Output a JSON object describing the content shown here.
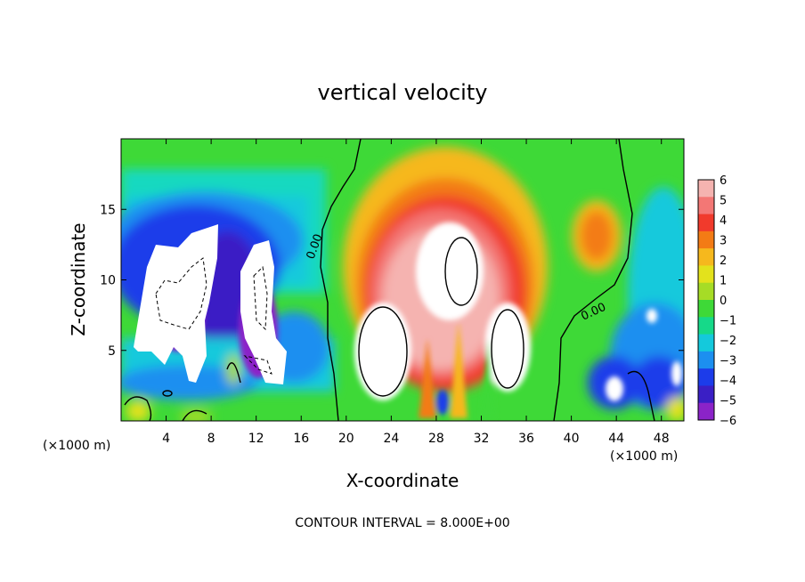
{
  "chart_data": {
    "type": "heatmap",
    "title": "vertical velocity",
    "xlabel": "X-coordinate",
    "ylabel": "Z-coordinate",
    "x_unit_left": "(×1000 m)",
    "x_unit_right": "(×1000 m)",
    "footer": "CONTOUR INTERVAL = 8.000E+00",
    "xlim": [
      0,
      50
    ],
    "ylim": [
      0,
      20
    ],
    "x_ticks": [
      4,
      8,
      12,
      16,
      20,
      24,
      28,
      32,
      36,
      40,
      44,
      48
    ],
    "y_ticks": [
      5,
      10,
      15
    ],
    "colorbar": {
      "min": -6,
      "max": 6,
      "tick_labels": [
        "6",
        "5",
        "4",
        "3",
        "2",
        "1",
        "0",
        "−1",
        "−2",
        "−3",
        "−4",
        "−5",
        "−6"
      ],
      "colors": [
        "#f5b3b0",
        "#f37775",
        "#f13a2c",
        "#f37b15",
        "#f6b81d",
        "#e3e21c",
        "#a6dc26",
        "#3ed937",
        "#16d989",
        "#14c9dc",
        "#1c8ff0",
        "#1c3cea",
        "#3a1fc5",
        "#8b23c8"
      ]
    },
    "contour_labels": [
      "0.00",
      "0.00"
    ]
  }
}
